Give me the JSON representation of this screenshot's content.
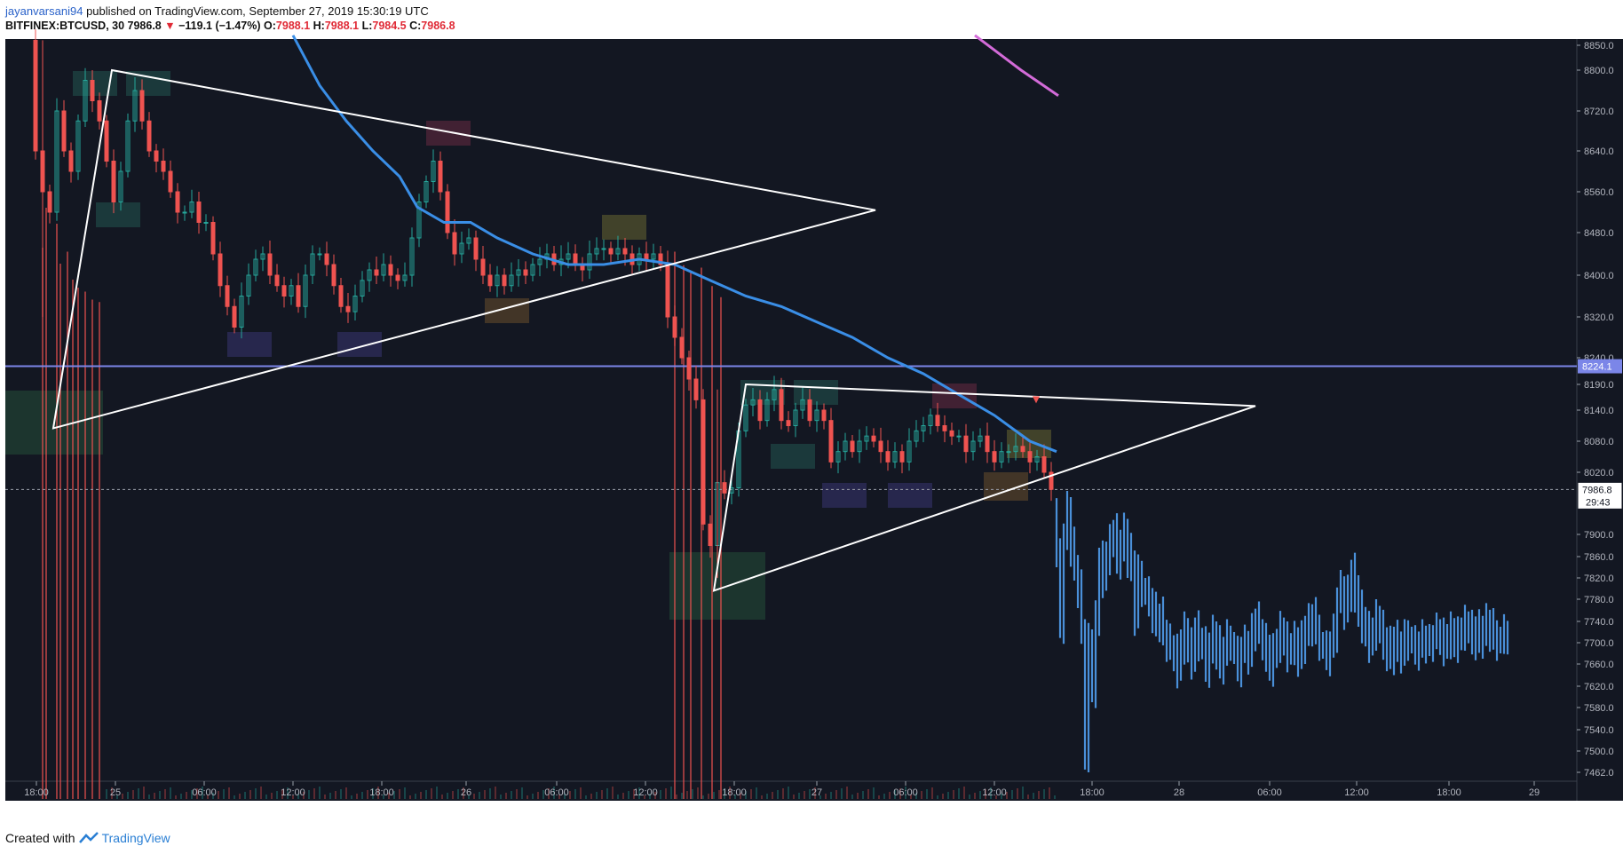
{
  "header": {
    "author": "jayanvarsani94",
    "published_text": "published on TradingView.com, September 27, 2019 15:30:19 UTC",
    "symbol": "BITFINEX:BTCUSD, 30",
    "last": "7986.8",
    "change": "−119.1 (−1.47%)",
    "o_label": "O:",
    "o_val": "7988.1",
    "h_label": "H:",
    "h_val": "7988.1",
    "l_label": "L:",
    "l_val": "7984.5",
    "c_label": "C:",
    "c_val": "7986.8"
  },
  "footer": {
    "created_with": "Created with",
    "brand": "TradingView"
  },
  "colors": {
    "background": "#131722",
    "up": "#26a69a",
    "down": "#ef5350",
    "ma": "#3a8ee6",
    "price_line": "#7b86e8",
    "forecast": "#4a90d9",
    "magenta": "#d36bd8"
  },
  "chart_data": {
    "type": "line",
    "symbol": "BITFINEX:BTCUSD",
    "interval": "30",
    "ylim": [
      7462,
      8870
    ],
    "y_ticks": [
      8850,
      8800,
      8720,
      8640,
      8560,
      8480,
      8400,
      8320,
      8240,
      8190,
      8140,
      8080,
      8020,
      7900,
      7860,
      7820,
      7780,
      7740,
      7700,
      7660,
      7620,
      7580,
      7540,
      7500,
      7462
    ],
    "x_ticks": [
      "18:00",
      "25",
      "06:00",
      "12:00",
      "18:00",
      "26",
      "06:00",
      "12:00",
      "18:00",
      "27",
      "06:00",
      "12:00",
      "18:00",
      "28",
      "06:00",
      "12:00",
      "18:00",
      "29"
    ],
    "horizontal_line": {
      "price": 8224.1,
      "label": "8224.1"
    },
    "last_price": {
      "price": 7986.8,
      "label": "7986.8",
      "countdown": "29:43"
    },
    "candles_approx": [
      {
        "t": "24 18:00",
        "o": 8860,
        "c": 8630
      },
      {
        "t": "25 00:00",
        "o": 8620,
        "c": 8780
      },
      {
        "t": "25 06:00",
        "o": 8580,
        "c": 8500
      },
      {
        "t": "25 12:00",
        "o": 8420,
        "c": 8380
      },
      {
        "t": "25 18:00",
        "o": 8380,
        "c": 8420
      },
      {
        "t": "25 21:00",
        "o": 8560,
        "c": 8660
      },
      {
        "t": "26 00:00",
        "o": 8460,
        "c": 8420
      },
      {
        "t": "26 06:00",
        "o": 8400,
        "c": 8440
      },
      {
        "t": "26 12:00",
        "o": 8440,
        "c": 8400
      },
      {
        "t": "26 15:00",
        "o": 8180,
        "c": 7880
      },
      {
        "t": "26 18:00",
        "o": 7880,
        "c": 8160
      },
      {
        "t": "27 00:00",
        "o": 8100,
        "c": 8020
      },
      {
        "t": "27 06:00",
        "o": 8020,
        "c": 8110
      },
      {
        "t": "27 12:00",
        "o": 8060,
        "c": 8040
      },
      {
        "t": "27 15:30",
        "o": 8040,
        "c": 7987
      }
    ],
    "forecast_approx": [
      {
        "t": "27 16:00",
        "y": 7950
      },
      {
        "t": "27 18:00",
        "y": 7560
      },
      {
        "t": "27 21:00",
        "y": 7850
      },
      {
        "t": "28 00:00",
        "y": 7790
      },
      {
        "t": "28 03:00",
        "y": 7670
      },
      {
        "t": "28 06:00",
        "y": 7700
      },
      {
        "t": "28 09:00",
        "y": 7680
      },
      {
        "t": "28 12:00",
        "y": 7800
      },
      {
        "t": "28 15:00",
        "y": 7700
      },
      {
        "t": "28 21:00",
        "y": 7720
      }
    ],
    "grid": false,
    "legend": "none"
  }
}
